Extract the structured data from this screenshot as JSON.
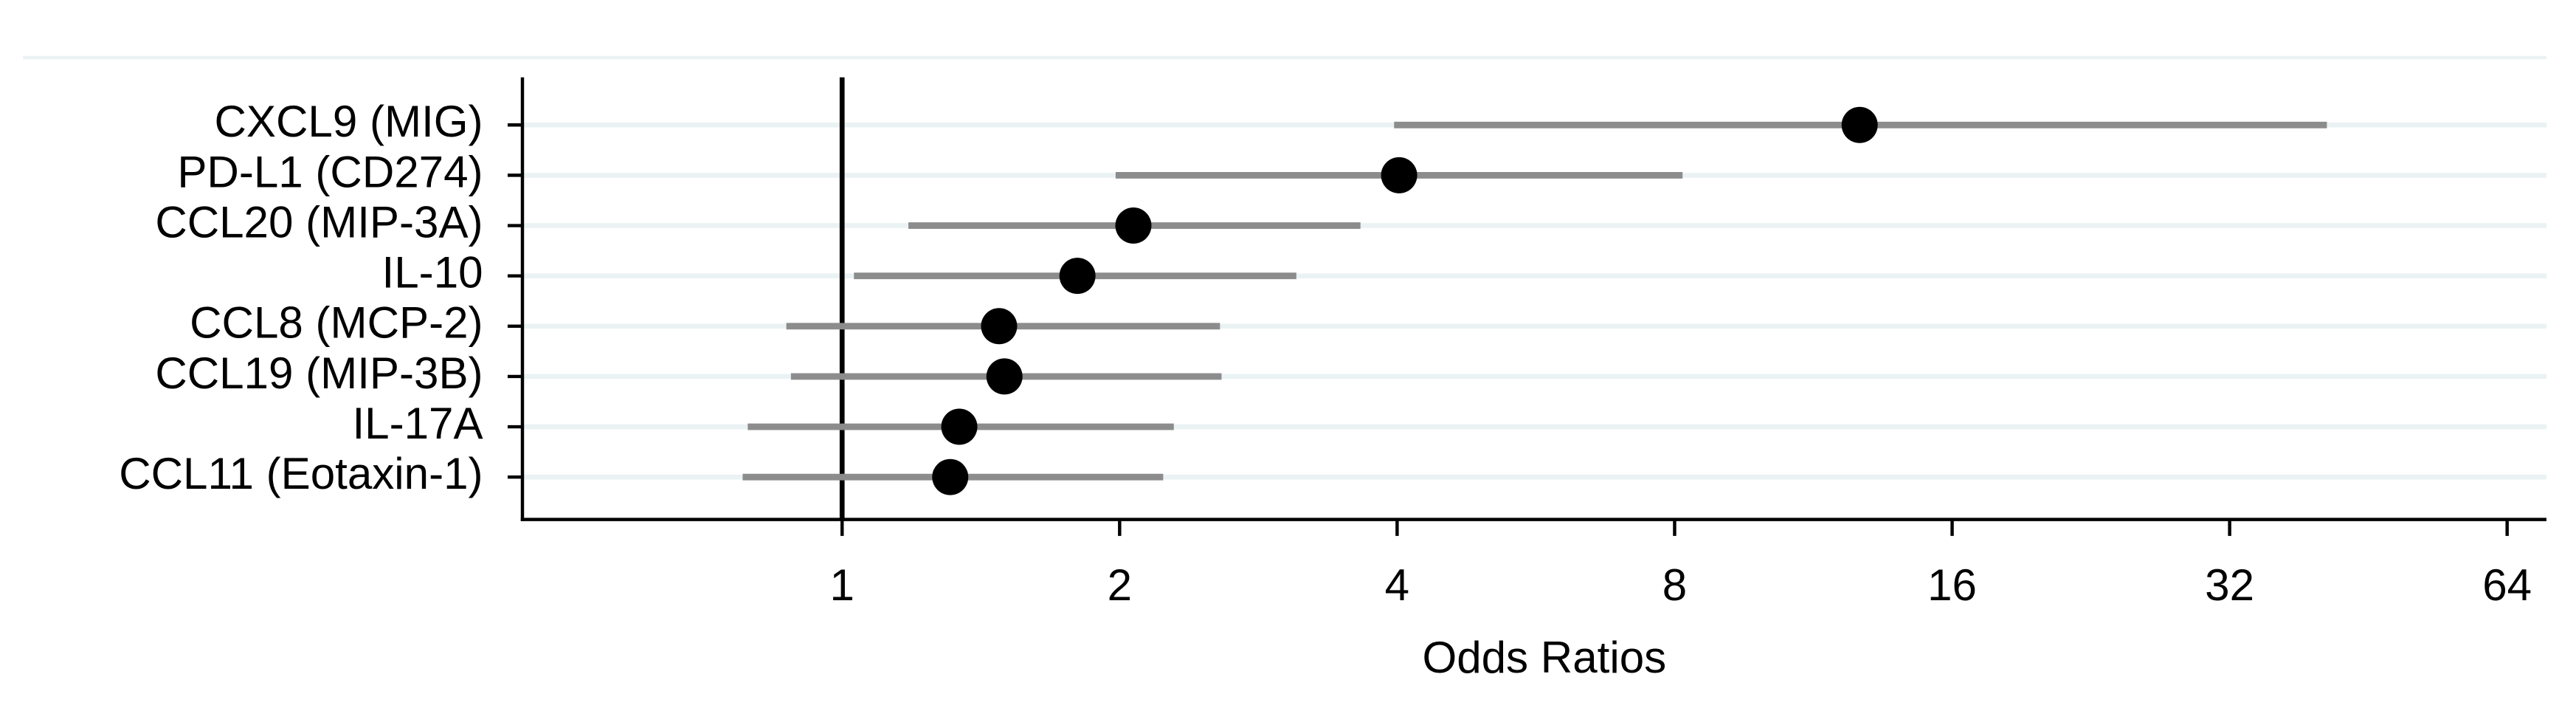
{
  "chart_data": {
    "type": "forest",
    "xlabel": "Odds Ratios",
    "categories": [
      "CXCL9 (MIG)",
      "PD-L1 (CD274)",
      "CCL20 (MIP-3A)",
      "IL-10",
      "CCL8 (MCP-2)",
      "CCL19 (MIP-3B)",
      "IL-17A",
      "CCL11 (Eotaxin-1)"
    ],
    "values": [
      12.7,
      4.02,
      2.07,
      1.8,
      1.48,
      1.5,
      1.34,
      1.31
    ],
    "ci_low": [
      3.97,
      1.98,
      1.18,
      1.03,
      0.87,
      0.88,
      0.79,
      0.78
    ],
    "ci_high": [
      40.8,
      8.16,
      3.65,
      3.11,
      2.57,
      2.58,
      2.29,
      2.23
    ],
    "point_color": "#000000",
    "ci_color": "#8c8c8c",
    "grid_color": "#eaf2f4",
    "xscale": "log2",
    "xlim": [
      0.45,
      70.6
    ],
    "xticks": [
      1,
      2,
      4,
      8,
      16,
      32,
      64
    ],
    "refline": 1,
    "grid": true
  }
}
